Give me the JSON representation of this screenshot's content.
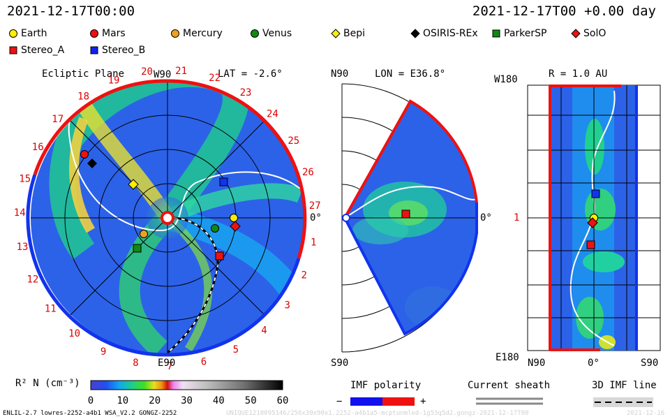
{
  "header": {
    "datetime_left": "2021-12-17T00:00",
    "datetime_right": "2021-12-17T00 +0.00 day"
  },
  "legend": [
    {
      "name": "Earth",
      "shape": "circle",
      "color": "#ffee00"
    },
    {
      "name": "Mars",
      "shape": "circle",
      "color": "#ee1111"
    },
    {
      "name": "Mercury",
      "shape": "circle",
      "color": "#f0a020"
    },
    {
      "name": "Venus",
      "shape": "circle",
      "color": "#118811"
    },
    {
      "name": "Bepi",
      "shape": "diamond",
      "color": "#ffee00"
    },
    {
      "name": "OSIRIS-REx",
      "shape": "diamond",
      "color": "#000000"
    },
    {
      "name": "ParkerSP",
      "shape": "square",
      "color": "#118811"
    },
    {
      "name": "SolO",
      "shape": "diamond",
      "color": "#ee1111"
    },
    {
      "name": "Stereo_A",
      "shape": "square",
      "color": "#ee1111"
    },
    {
      "name": "Stereo_B",
      "shape": "square",
      "color": "#1122ee"
    }
  ],
  "panels": {
    "ecliptic": {
      "title": "Ecliptic Plane",
      "lat": "LAT = -2.6°",
      "top_label": "W90",
      "bottom_label": "E90",
      "right_label": "0°",
      "clock_labels": [
        "1",
        "2",
        "3",
        "4",
        "5",
        "6",
        "7",
        "8",
        "9",
        "10",
        "11",
        "12",
        "13",
        "14",
        "15",
        "16",
        "17",
        "18",
        "19",
        "20",
        "21",
        "22",
        "23",
        "24",
        "25",
        "26",
        "27"
      ]
    },
    "meridional": {
      "lon": "LON = E36.8°",
      "top_label": "N90",
      "bottom_label": "S90",
      "right_label": "0°"
    },
    "radial": {
      "r": "R = 1.0 AU",
      "top_label": "W180",
      "bottom_label": "E180",
      "mid_label": "1",
      "x_left": "N90",
      "x_mid": "0°",
      "x_right": "S90"
    }
  },
  "colorbar": {
    "label": "R² N (cm⁻³)",
    "ticks": [
      "0",
      "10",
      "20",
      "30",
      "40",
      "50",
      "60"
    ]
  },
  "imf": {
    "title": "IMF polarity",
    "minus": "−",
    "plus": "+",
    "sheath_title": "Current sheath",
    "line_title": "3D IMF line"
  },
  "footer": {
    "left": "ENLIL-2.7 lowres-2252-a4b1 WSA_V2.2 GONGZ-2252",
    "right": "UNIQUE1218095146/256x30x90x1.2252-a4b1a5-mcptunmled-1g53q5d2.gongz-2021-12-17T00",
    "date": "2021-12-16"
  },
  "chart_data": {
    "type": "heatmap",
    "quantity": "R² N (cm⁻³)",
    "color_range": [
      0,
      60
    ],
    "datetime": "2021-12-17T00:00",
    "lat": -2.6,
    "lon": 36.8,
    "r_au": 1.0
  }
}
